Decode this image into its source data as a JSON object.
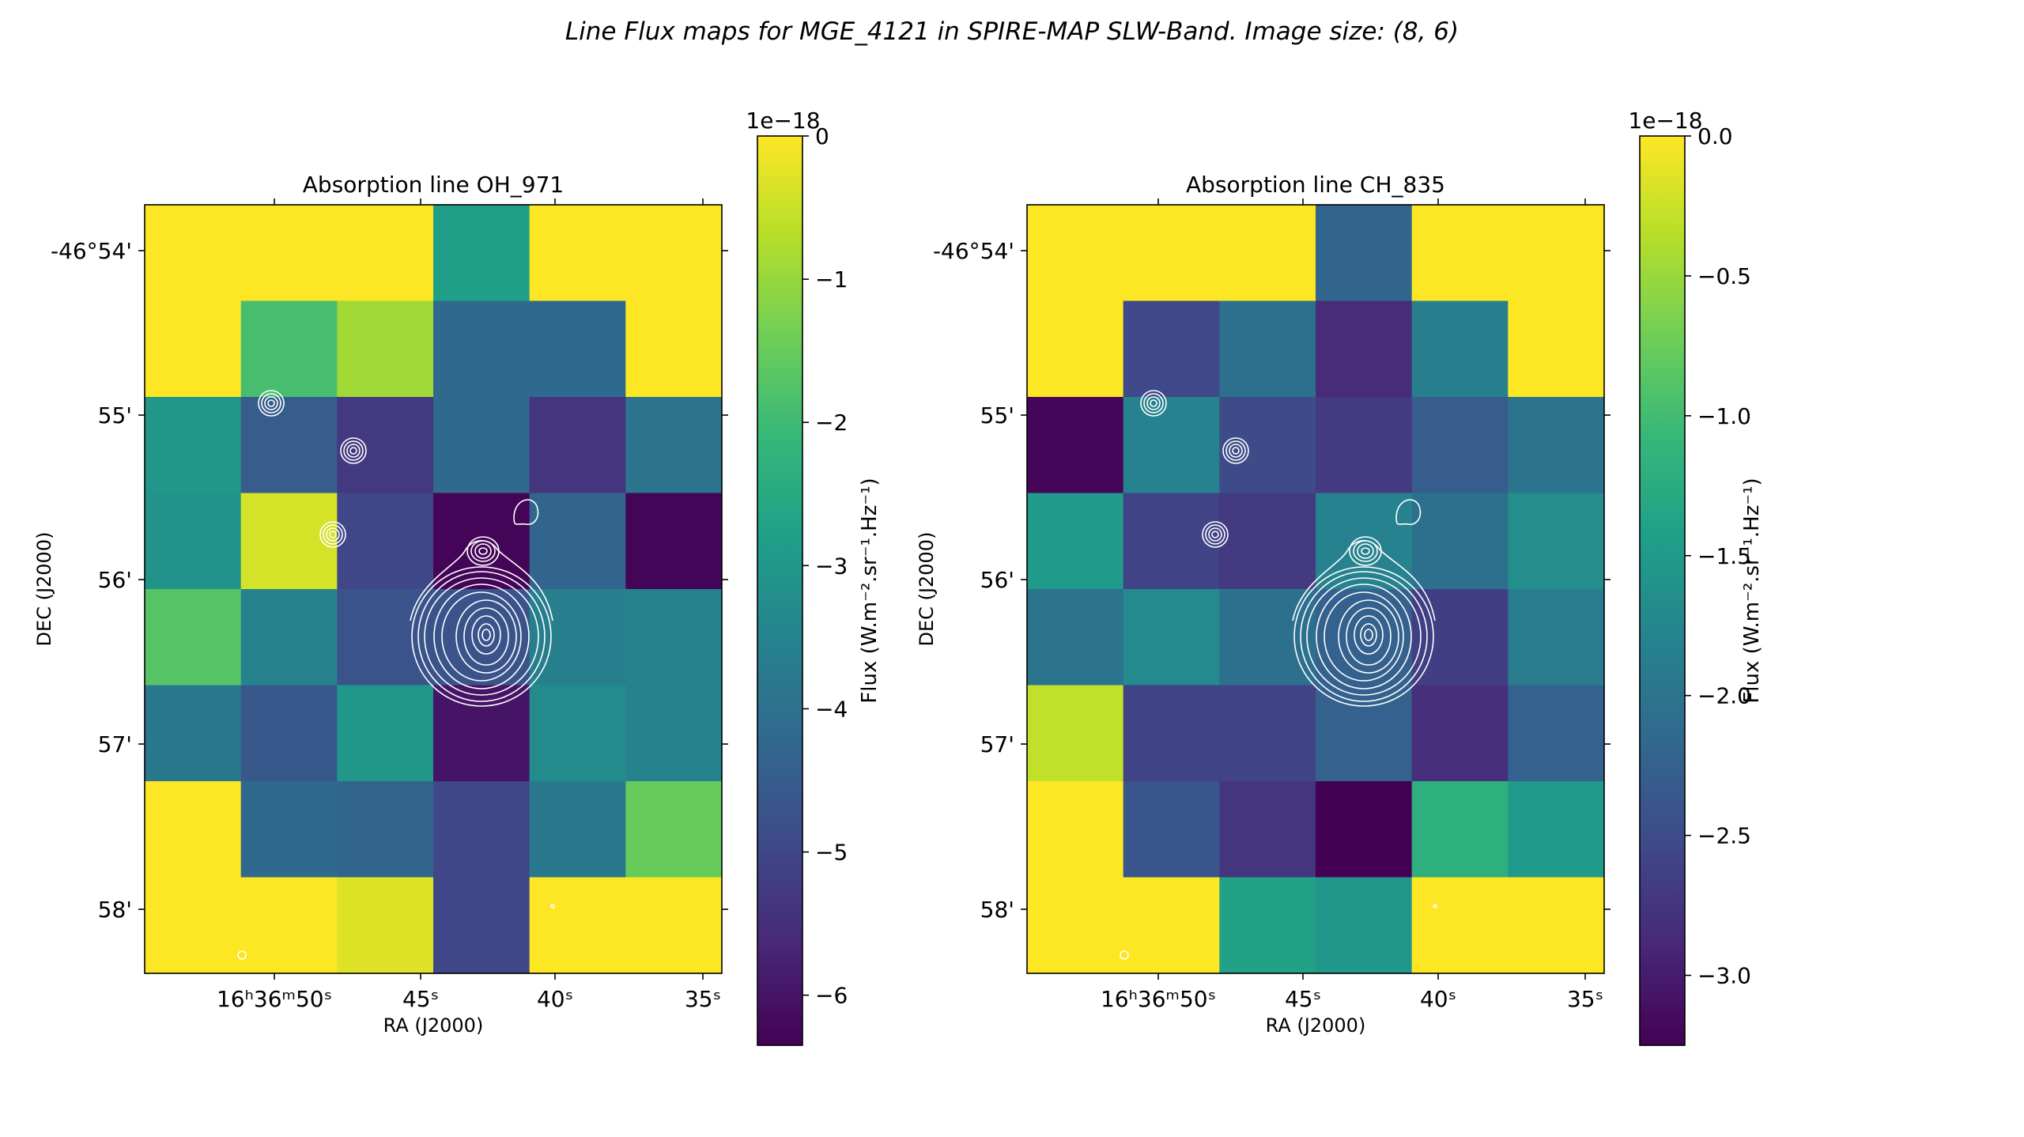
{
  "figure": {
    "title": "Line Flux maps for MGE_4121 in SPIRE-MAP SLW-Band. Image size: (8, 6)"
  },
  "colors": {
    "viridis": [
      "#440154",
      "#482878",
      "#3e4a89",
      "#31688e",
      "#26828e",
      "#1f9e89",
      "#35b779",
      "#6ece58",
      "#b5de2b",
      "#fde725"
    ],
    "contour": "#ffffff"
  },
  "chart_data": [
    {
      "type": "heatmap",
      "title": "Absorption line OH_971",
      "xlabel": "RA (J2000)",
      "ylabel": "DEC (J2000)",
      "x_ticks": [
        "16ʰ36ᵐ50ˢ",
        "45ˢ",
        "40ˢ",
        "35ˢ"
      ],
      "y_ticks": [
        "-46°54'",
        "55'",
        "56'",
        "57'",
        "58'"
      ],
      "colorbar": {
        "label": "Flux (W.m⁻².sr⁻¹.Hz⁻¹)",
        "scale_label": "1e−18",
        "ticks": [
          "0",
          "−1",
          "−2",
          "−3",
          "−4",
          "−5",
          "−6"
        ],
        "tick_values": [
          0,
          -1,
          -2,
          -3,
          -4,
          -5,
          -6
        ],
        "range": [
          -6.35,
          0
        ]
      },
      "rows": 8,
      "cols": 6,
      "grid_values_1e-18": [
        [
          0.0,
          0.0,
          0.0,
          -2.8,
          0.0,
          0.0
        ],
        [
          0.0,
          -1.9,
          -0.9,
          -4.2,
          -4.2,
          0.0
        ],
        [
          -3.0,
          -4.5,
          -5.3,
          -4.2,
          -5.4,
          -3.9
        ],
        [
          -3.1,
          -0.4,
          -5.0,
          -6.3,
          -4.3,
          -6.3
        ],
        [
          -1.7,
          -3.5,
          -4.7,
          -4.7,
          -3.6,
          -3.5
        ],
        [
          -3.8,
          -4.6,
          -3.0,
          -6.0,
          -3.3,
          -3.5
        ],
        [
          0.0,
          -4.2,
          -4.3,
          -5.0,
          -3.8,
          -1.5
        ],
        [
          0.0,
          0.0,
          -0.3,
          -5.0,
          0.0,
          0.0
        ]
      ]
    },
    {
      "type": "heatmap",
      "title": "Absorption line CH_835",
      "xlabel": "RA (J2000)",
      "ylabel": "DEC (J2000)",
      "x_ticks": [
        "16ʰ36ᵐ50ˢ",
        "45ˢ",
        "40ˢ",
        "35ˢ"
      ],
      "y_ticks": [
        "-46°54'",
        "55'",
        "56'",
        "57'",
        "58'"
      ],
      "colorbar": {
        "label": "Flux (W.m⁻².sr⁻¹.Hz⁻¹)",
        "scale_label": "1e−18",
        "ticks": [
          "0.0",
          "−0.5",
          "−1.0",
          "−1.5",
          "−2.0",
          "−2.5",
          "−3.0"
        ],
        "tick_values": [
          0,
          -0.5,
          -1.0,
          -1.5,
          -2.0,
          -2.5,
          -3.0
        ],
        "range": [
          -3.25,
          0
        ]
      },
      "rows": 8,
      "cols": 6,
      "grid_values_1e-18": [
        [
          0.0,
          0.0,
          0.0,
          -2.2,
          0.0,
          0.0
        ],
        [
          0.0,
          -2.55,
          -2.05,
          -2.85,
          -1.85,
          0.0
        ],
        [
          -3.2,
          -1.8,
          -2.5,
          -2.7,
          -2.3,
          -2.0
        ],
        [
          -1.5,
          -2.6,
          -2.7,
          -1.8,
          -2.05,
          -1.65
        ],
        [
          -2.0,
          -1.7,
          -2.05,
          -2.25,
          -2.65,
          -1.9
        ],
        [
          -0.3,
          -2.6,
          -2.6,
          -2.25,
          -2.8,
          -2.25
        ],
        [
          0.0,
          -2.4,
          -2.75,
          -3.25,
          -1.2,
          -1.5
        ],
        [
          0.0,
          0.0,
          -1.4,
          -1.55,
          0.0,
          0.0
        ]
      ]
    }
  ]
}
